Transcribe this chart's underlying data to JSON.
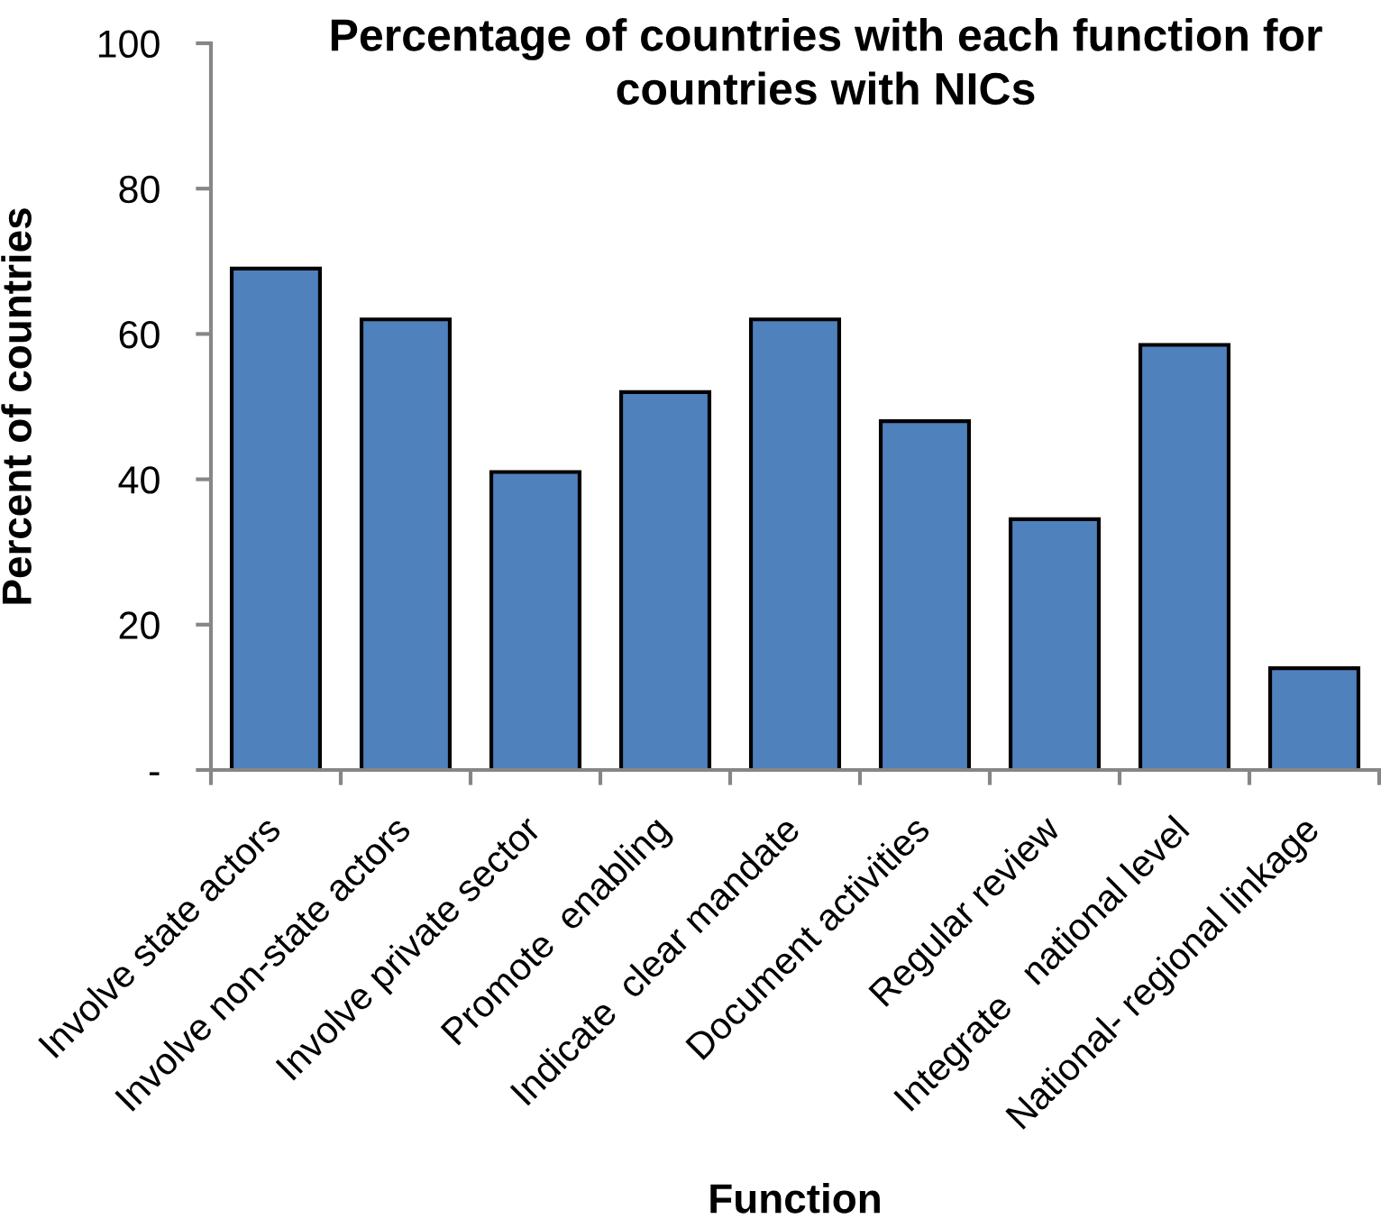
{
  "chart_data": {
    "type": "bar",
    "title": "Percentage of countries with each function for countries with NICs",
    "xlabel": "Function",
    "ylabel": "Percent of countries",
    "categories": [
      "Involve state actors",
      "Involve non-state actors",
      "Involve private sector",
      "Promote  enabling",
      "Indicate  clear mandate",
      "Document activities",
      "Regular review",
      "Integrate   national level",
      "National- regional linkage"
    ],
    "values": [
      69,
      62,
      41,
      52,
      62,
      48,
      34.5,
      58.5,
      14
    ],
    "color": "#4f81bd",
    "ylim": [
      0,
      100
    ],
    "yticks": [
      {
        "value": 0,
        "label": "-"
      },
      20,
      40,
      60,
      80,
      100
    ]
  }
}
